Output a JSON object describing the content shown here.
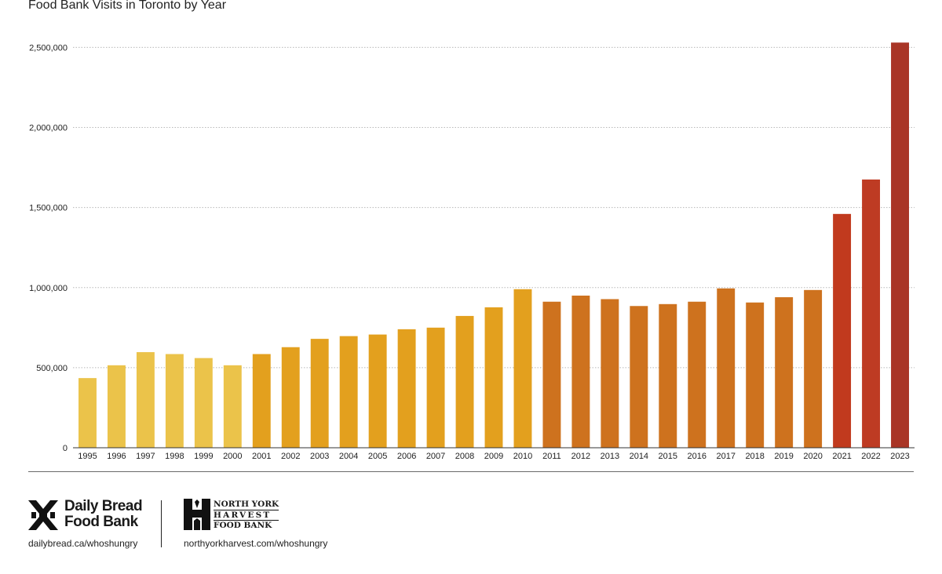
{
  "title": "Food Bank Visits in Toronto by Year",
  "chart_data": {
    "type": "bar",
    "title": "Food Bank Visits in Toronto by Year",
    "xlabel": "",
    "ylabel": "",
    "ylim": [
      0,
      2600000
    ],
    "yticks": [
      0,
      500000,
      1000000,
      1500000,
      2000000,
      2500000
    ],
    "ytick_labels": [
      "0",
      "500,000",
      "1,000,000",
      "1,500,000",
      "2,000,000",
      "2,500,000"
    ],
    "grid": "horizontal dotted",
    "categories": [
      "1995",
      "1996",
      "1997",
      "1998",
      "1999",
      "2000",
      "2001",
      "2002",
      "2003",
      "2004",
      "2005",
      "2006",
      "2007",
      "2008",
      "2009",
      "2010",
      "2011",
      "2012",
      "2013",
      "2014",
      "2015",
      "2016",
      "2017",
      "2018",
      "2019",
      "2020",
      "2021",
      "2022",
      "2023"
    ],
    "values": [
      435000,
      515000,
      597000,
      585000,
      560000,
      515000,
      585000,
      628000,
      680000,
      697000,
      707000,
      740000,
      750000,
      823000,
      877000,
      990000,
      912000,
      950000,
      928000,
      885000,
      897000,
      912000,
      995000,
      907000,
      940000,
      985000,
      1460000,
      1675000,
      2530000
    ],
    "colors": [
      "#EBC34A",
      "#EBC34A",
      "#EBC34A",
      "#EBC34A",
      "#EBC34A",
      "#EBC34A",
      "#E3A01E",
      "#E3A01E",
      "#E3A01E",
      "#E3A01E",
      "#E3A01E",
      "#E3A01E",
      "#E3A01E",
      "#E3A01E",
      "#E3A01E",
      "#E3A01E",
      "#CE721E",
      "#CE721E",
      "#CE721E",
      "#CE721E",
      "#CE721E",
      "#CE721E",
      "#CE721E",
      "#CE721E",
      "#CE721E",
      "#CE721E",
      "#C13A1E",
      "#BE3B23",
      "#A93526"
    ]
  },
  "footer": {
    "daily_bread": {
      "name_line1": "Daily Bread",
      "name_line2": "Food Bank",
      "url": "dailybread.ca/whoshungry",
      "icon": "daily-bread-x-logo"
    },
    "north_york": {
      "name_line1": "NORTH YORK",
      "name_line2": "HARVEST",
      "name_line3": "FOOD BANK",
      "url": "northyorkharvest.com/whoshungry",
      "icon": "north-york-harvest-logo"
    }
  }
}
